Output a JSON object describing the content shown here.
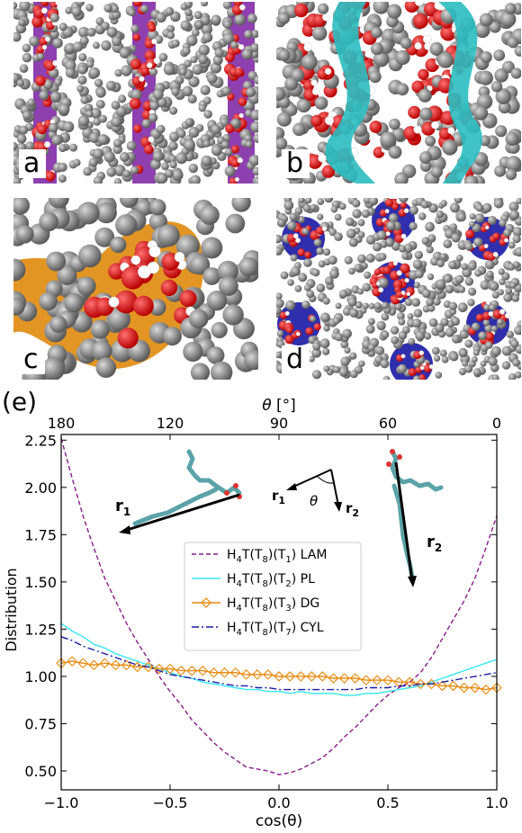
{
  "panels": [
    {
      "letter": "a",
      "ribbon_color": "#7a1fa2"
    },
    {
      "letter": "b",
      "ribbon_color": "#2bbcc0"
    },
    {
      "letter": "c",
      "ribbon_color": "#e08a0c"
    },
    {
      "letter": "d",
      "ribbon_color": "#0a0aa0"
    }
  ],
  "chart_data": {
    "type": "line",
    "panel_label": "(e)",
    "xlabel": "cos(θ)",
    "ylabel": "Distribution",
    "top_xlabel_symbol": "θ",
    "top_xlabel_unit": "[°]",
    "xlim": [
      -1.0,
      1.0
    ],
    "ylim": [
      0.4,
      2.28
    ],
    "xticks": [
      -1.0,
      -0.5,
      0.0,
      0.5,
      1.0
    ],
    "xtick_labels": [
      "−1.0",
      "−0.5",
      "0.0",
      "0.5",
      "1.0"
    ],
    "yticks": [
      0.5,
      0.75,
      1.0,
      1.25,
      1.5,
      1.75,
      2.0,
      2.25
    ],
    "ytick_labels": [
      "0.50",
      "0.75",
      "1.00",
      "1.25",
      "1.50",
      "1.75",
      "2.00",
      "2.25"
    ],
    "top_ticks_deg": [
      180,
      120,
      90,
      60,
      0
    ],
    "top_tick_labels": [
      "180",
      "120",
      "90",
      "60",
      "0"
    ],
    "legend_position": "center",
    "inset": {
      "r1": "r",
      "r1_sub": "1",
      "r2": "r",
      "r2_sub": "2",
      "angle": "θ"
    },
    "series": [
      {
        "name": "H4T(T8)(T1) LAM",
        "legend": [
          "H",
          "4",
          "T(T",
          "8",
          ")(T",
          "1",
          ") LAM"
        ],
        "color": "#8b1a8b",
        "style": "dashed",
        "x": [
          -1.0,
          -0.95,
          -0.9,
          -0.85,
          -0.8,
          -0.75,
          -0.7,
          -0.65,
          -0.6,
          -0.55,
          -0.5,
          -0.45,
          -0.4,
          -0.35,
          -0.3,
          -0.25,
          -0.2,
          -0.15,
          -0.1,
          -0.05,
          0.0,
          0.05,
          0.1,
          0.15,
          0.2,
          0.25,
          0.3,
          0.35,
          0.4,
          0.45,
          0.5,
          0.55,
          0.6,
          0.65,
          0.7,
          0.75,
          0.8,
          0.85,
          0.9,
          0.95,
          1.0
        ],
        "values": [
          2.26,
          2.05,
          1.85,
          1.68,
          1.52,
          1.4,
          1.28,
          1.18,
          1.09,
          1.0,
          0.92,
          0.85,
          0.77,
          0.71,
          0.65,
          0.6,
          0.56,
          0.52,
          0.51,
          0.5,
          0.48,
          0.49,
          0.51,
          0.54,
          0.57,
          0.62,
          0.68,
          0.73,
          0.79,
          0.85,
          0.9,
          0.94,
          0.97,
          1.02,
          1.1,
          1.2,
          1.3,
          1.4,
          1.52,
          1.68,
          1.85
        ]
      },
      {
        "name": "H4T(T8)(T2) PL",
        "legend": [
          "H",
          "4",
          "T(T",
          "8",
          ")(T",
          "2",
          ") PL"
        ],
        "color": "#33e8f0",
        "style": "solid",
        "x": [
          -1.0,
          -0.95,
          -0.9,
          -0.85,
          -0.8,
          -0.75,
          -0.7,
          -0.65,
          -0.6,
          -0.55,
          -0.5,
          -0.45,
          -0.4,
          -0.35,
          -0.3,
          -0.25,
          -0.2,
          -0.15,
          -0.1,
          -0.05,
          0.0,
          0.05,
          0.1,
          0.15,
          0.2,
          0.25,
          0.3,
          0.35,
          0.4,
          0.45,
          0.5,
          0.55,
          0.6,
          0.65,
          0.7,
          0.75,
          0.8,
          0.85,
          0.9,
          0.95,
          1.0
        ],
        "values": [
          1.28,
          1.24,
          1.21,
          1.17,
          1.15,
          1.12,
          1.1,
          1.08,
          1.06,
          1.04,
          1.02,
          1.0,
          0.99,
          0.97,
          0.96,
          0.95,
          0.94,
          0.93,
          0.93,
          0.92,
          0.92,
          0.91,
          0.92,
          0.91,
          0.91,
          0.91,
          0.9,
          0.9,
          0.91,
          0.91,
          0.92,
          0.93,
          0.94,
          0.95,
          0.97,
          0.99,
          1.01,
          1.03,
          1.05,
          1.07,
          1.09
        ]
      },
      {
        "name": "H4T(T8)(T3) DG",
        "legend": [
          "H",
          "4",
          "T(T",
          "8",
          ")(T",
          "3",
          ") DG"
        ],
        "color": "#e8890c",
        "style": "solid-diamond",
        "x": [
          -1.0,
          -0.95,
          -0.9,
          -0.85,
          -0.8,
          -0.75,
          -0.7,
          -0.65,
          -0.6,
          -0.55,
          -0.5,
          -0.45,
          -0.4,
          -0.35,
          -0.3,
          -0.25,
          -0.2,
          -0.15,
          -0.1,
          -0.05,
          0.0,
          0.05,
          0.1,
          0.15,
          0.2,
          0.25,
          0.3,
          0.35,
          0.4,
          0.45,
          0.5,
          0.55,
          0.6,
          0.65,
          0.7,
          0.75,
          0.8,
          0.85,
          0.9,
          0.95,
          1.0
        ],
        "values": [
          1.07,
          1.08,
          1.07,
          1.06,
          1.07,
          1.06,
          1.06,
          1.05,
          1.05,
          1.04,
          1.04,
          1.03,
          1.03,
          1.03,
          1.02,
          1.02,
          1.02,
          1.01,
          1.01,
          1.01,
          1.0,
          1.0,
          1.0,
          1.0,
          1.0,
          0.99,
          0.99,
          0.99,
          0.98,
          0.98,
          0.98,
          0.97,
          0.97,
          0.96,
          0.96,
          0.95,
          0.95,
          0.94,
          0.94,
          0.93,
          0.94
        ]
      },
      {
        "name": "H4T(T8)(T7) CYL",
        "legend": [
          "H",
          "4",
          "T(T",
          "8",
          ")(T",
          "7",
          ") CYL"
        ],
        "color": "#1a1aa8",
        "style": "dashdot",
        "x": [
          -1.0,
          -0.95,
          -0.9,
          -0.85,
          -0.8,
          -0.75,
          -0.7,
          -0.65,
          -0.6,
          -0.55,
          -0.5,
          -0.45,
          -0.4,
          -0.35,
          -0.3,
          -0.25,
          -0.2,
          -0.15,
          -0.1,
          -0.05,
          0.0,
          0.05,
          0.1,
          0.15,
          0.2,
          0.25,
          0.3,
          0.35,
          0.4,
          0.45,
          0.5,
          0.55,
          0.6,
          0.65,
          0.7,
          0.75,
          0.8,
          0.85,
          0.9,
          0.95,
          1.0
        ],
        "values": [
          1.21,
          1.19,
          1.16,
          1.14,
          1.12,
          1.1,
          1.08,
          1.06,
          1.05,
          1.03,
          1.01,
          1.0,
          0.99,
          0.98,
          0.97,
          0.96,
          0.95,
          0.95,
          0.94,
          0.94,
          0.93,
          0.93,
          0.93,
          0.93,
          0.93,
          0.93,
          0.93,
          0.93,
          0.94,
          0.94,
          0.94,
          0.95,
          0.95,
          0.96,
          0.96,
          0.97,
          0.98,
          0.99,
          1.0,
          1.01,
          1.02
        ]
      }
    ]
  }
}
